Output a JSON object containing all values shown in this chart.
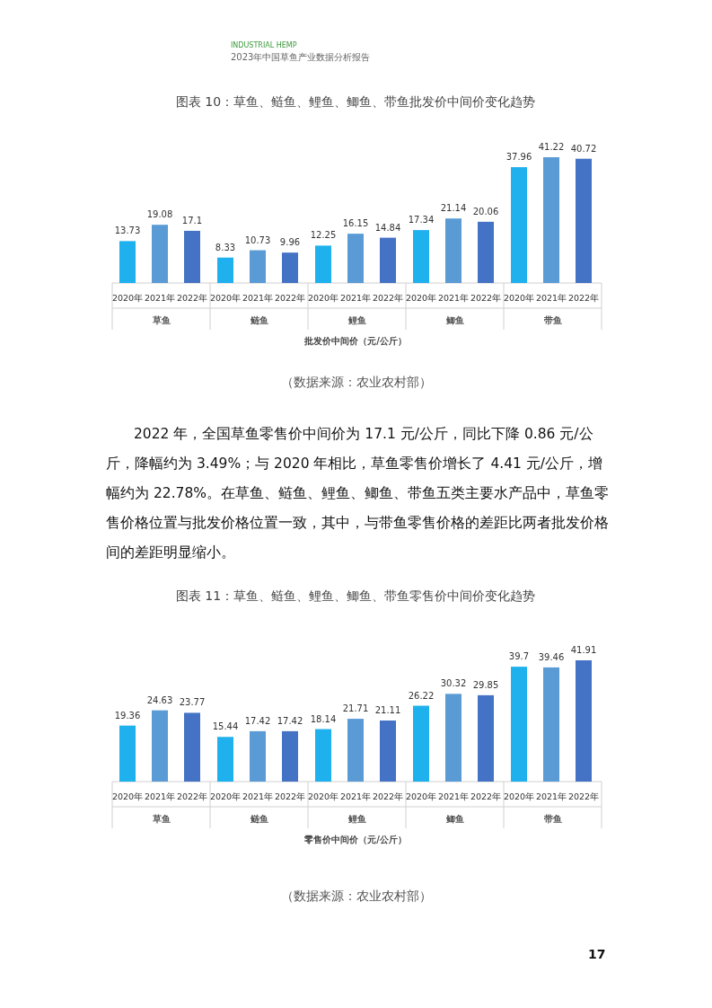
{
  "chart_data": [
    {
      "type": "bar",
      "title": "图表 10：草鱼、鲢鱼、鲤鱼、鲫鱼、带鱼批发价中间价变化趋势",
      "categories": [
        "草鱼",
        "鲢鱼",
        "鲤鱼",
        "鲫鱼",
        "带鱼"
      ],
      "series": [
        {
          "name": "2020年",
          "color": "#1fb0ee",
          "values": [
            13.73,
            8.33,
            12.25,
            17.34,
            37.96
          ]
        },
        {
          "name": "2021年",
          "color": "#5b9bd5",
          "values": [
            19.08,
            10.73,
            16.15,
            21.14,
            41.22
          ]
        },
        {
          "name": "2022年",
          "color": "#4472c4",
          "values": [
            17.1,
            9.96,
            14.84,
            20.06,
            40.72
          ]
        }
      ],
      "data_labels": true,
      "xlabel": "批发价中间价（元/公斤）",
      "annotations": [
        "INDUSTRIAL HEMP",
        "2023年中国草鱼产业数据分析报告",
        "（数据来源：农业农村部）",
        "2022 年，全国草鱼零售价中间价为 17.1 元/公斤，同比下降 0.86 元/公斤，降幅约为 3.49%；与 2020 年相比，草鱼零售价增长了 4.41 元/公斤，增幅约为 22.78%。在草鱼、鲢鱼、鲤鱼、鲫鱼、带鱼五类主要水产品中，草鱼零售价格位置与批发价格位置一致，其中，与带鱼零售价格的差距比两者批发价格间的差距明显缩小。"
      ]
    },
    {
      "type": "bar",
      "title": "图表 11：草鱼、鲢鱼、鲤鱼、鲫鱼、带鱼零售价中间价变化趋势",
      "categories": [
        "草鱼",
        "鲢鱼",
        "鲤鱼",
        "鲫鱼",
        "带鱼"
      ],
      "series": [
        {
          "name": "2020年",
          "color": "#1fb0ee",
          "values": [
            19.36,
            15.44,
            18.14,
            26.22,
            39.7
          ]
        },
        {
          "name": "2021年",
          "color": "#5b9bd5",
          "values": [
            24.63,
            17.42,
            21.71,
            30.32,
            39.46
          ]
        },
        {
          "name": "2022年",
          "color": "#4472c4",
          "values": [
            23.77,
            17.42,
            21.11,
            29.85,
            41.91
          ]
        }
      ],
      "data_labels": true,
      "xlabel": "零售价中间价（元/公斤）",
      "annotations": [
        "（数据来源：农业农村部）",
        "17"
      ]
    }
  ]
}
